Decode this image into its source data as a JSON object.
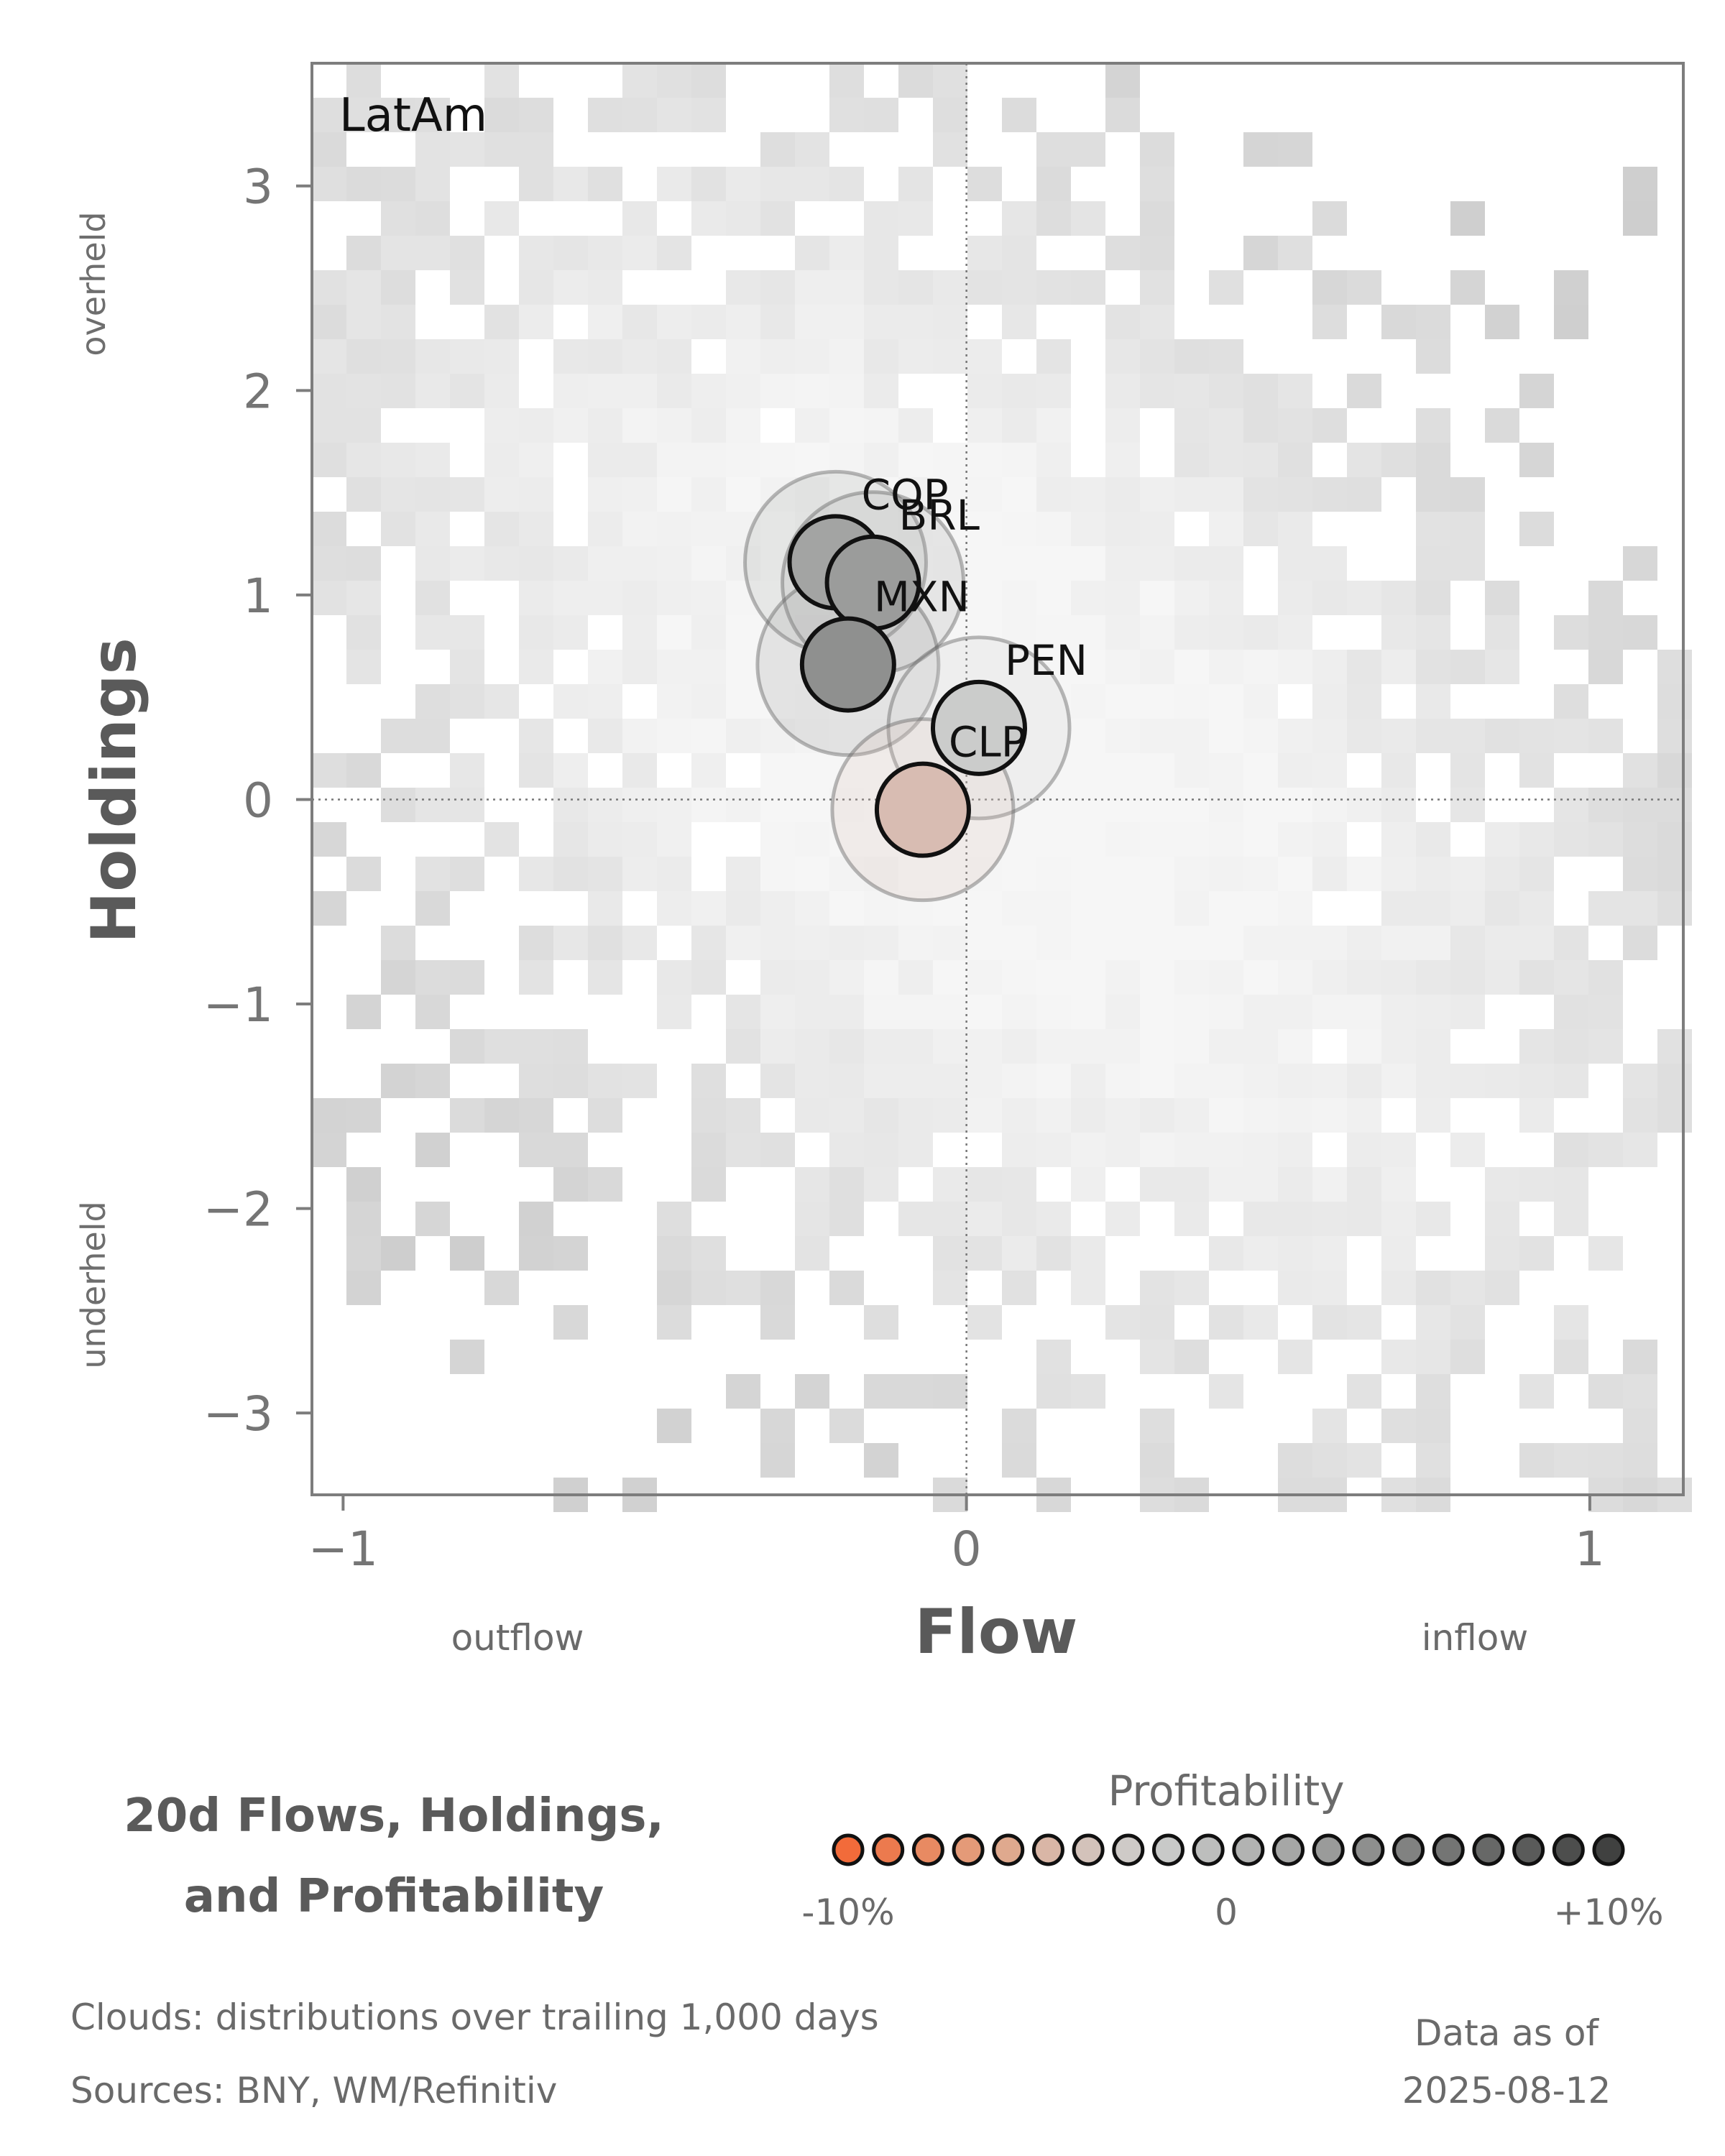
{
  "chart_data": {
    "type": "scatter",
    "panel_label": "LatAm",
    "xlabel": "Flow",
    "ylabel": "Holdings",
    "xlim": [
      -1.05,
      1.15
    ],
    "ylim": [
      -3.4,
      3.6
    ],
    "x_ticks": [
      {
        "value": -1,
        "label": "−1"
      },
      {
        "value": 0,
        "label": "0"
      },
      {
        "value": 1,
        "label": "1"
      }
    ],
    "y_ticks": [
      {
        "value": 3,
        "label": "3"
      },
      {
        "value": 2,
        "label": "2"
      },
      {
        "value": 1,
        "label": "1"
      },
      {
        "value": 0,
        "label": "0"
      },
      {
        "value": -1,
        "label": "−1"
      },
      {
        "value": -2,
        "label": "−2"
      },
      {
        "value": -3,
        "label": "−3"
      }
    ],
    "x_direction_labels": {
      "negative": "outflow",
      "positive": "inflow"
    },
    "y_direction_labels": {
      "positive": "overheld",
      "negative": "underheld"
    },
    "reference_lines": {
      "x": 0,
      "y": 0
    },
    "points": [
      {
        "label": "COP",
        "x": -0.21,
        "y": 1.16,
        "profitability_pct": 5,
        "color": "#a3a4a3"
      },
      {
        "label": "BRL",
        "x": -0.15,
        "y": 1.06,
        "profitability_pct": 6,
        "color": "#9b9c9b"
      },
      {
        "label": "MXN",
        "x": -0.19,
        "y": 0.66,
        "profitability_pct": 7,
        "color": "#8f908f"
      },
      {
        "label": "PEN",
        "x": 0.02,
        "y": 0.35,
        "profitability_pct": 1,
        "color": "#cbcccb"
      },
      {
        "label": "CLP",
        "x": -0.07,
        "y": -0.05,
        "profitability_pct": -2,
        "color": "#d8bcb2"
      }
    ],
    "background": "2D histogram clouds of historical flow/holdings"
  },
  "legend": {
    "title": "Profitability",
    "tick_labels": {
      "min": "-10%",
      "mid": "0",
      "max": "+10%"
    },
    "colors": [
      "#f26b3a",
      "#ec7a4e",
      "#e88a62",
      "#e49a78",
      "#dfa98e",
      "#d9b6a6",
      "#d3c2ba",
      "#cecac7",
      "#c8c9c8",
      "#bdbebd",
      "#b2b3b2",
      "#a6a7a6",
      "#9a9b9a",
      "#8e8f8e",
      "#818281",
      "#747574",
      "#676867",
      "#5a5b5a",
      "#4d4e4d",
      "#404140"
    ]
  },
  "footer": {
    "title_line1": "20d Flows, Holdings,",
    "title_line2": "and Profitability",
    "clouds_note": "Clouds:  distributions over trailing 1,000 days",
    "sources_note": "Sources:  BNY, WM/Refinitiv",
    "data_as_of_label": "Data as of",
    "data_as_of_date": "2025-08-12"
  }
}
